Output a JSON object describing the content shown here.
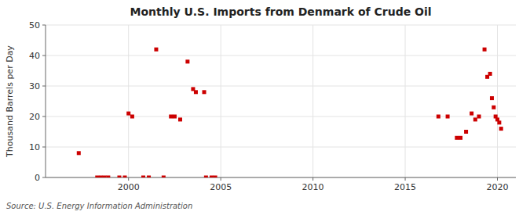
{
  "chart_data": {
    "type": "scatter",
    "title": "Monthly U.S. Imports from Denmark of Crude Oil",
    "ylabel": "Thousand Barrels per Day",
    "source": "Source: U.S. Energy Information Administration",
    "color": "#cc0000",
    "marker": "square",
    "grid": true,
    "xlim": [
      1995.5,
      2021.0
    ],
    "xticks": [
      2000,
      2005,
      2010,
      2015,
      2020
    ],
    "ylim": [
      0,
      50
    ],
    "yticks": [
      0,
      10,
      20,
      30,
      40,
      50
    ],
    "x": [
      1997.3,
      1998.3,
      1998.5,
      1998.7,
      1998.9,
      1999.5,
      1999.8,
      2000.0,
      2000.2,
      2000.8,
      2001.1,
      2001.5,
      2001.9,
      2002.3,
      2002.5,
      2002.8,
      2003.2,
      2003.5,
      2003.65,
      2004.1,
      2004.2,
      2004.5,
      2004.7,
      2016.8,
      2017.3,
      2017.8,
      2018.0,
      2018.3,
      2018.6,
      2018.8,
      2019.0,
      2019.3,
      2019.45,
      2019.6,
      2019.7,
      2019.8,
      2019.9,
      2020.0,
      2020.1,
      2020.2
    ],
    "values": [
      8,
      0,
      0,
      0,
      0,
      0,
      0,
      21,
      20,
      0,
      0,
      42,
      0,
      20,
      20,
      19,
      38,
      29,
      28,
      28,
      0,
      0,
      0,
      20,
      20,
      13,
      13,
      15,
      21,
      19,
      20,
      42,
      33,
      34,
      26,
      23,
      20,
      19,
      18,
      16
    ]
  }
}
